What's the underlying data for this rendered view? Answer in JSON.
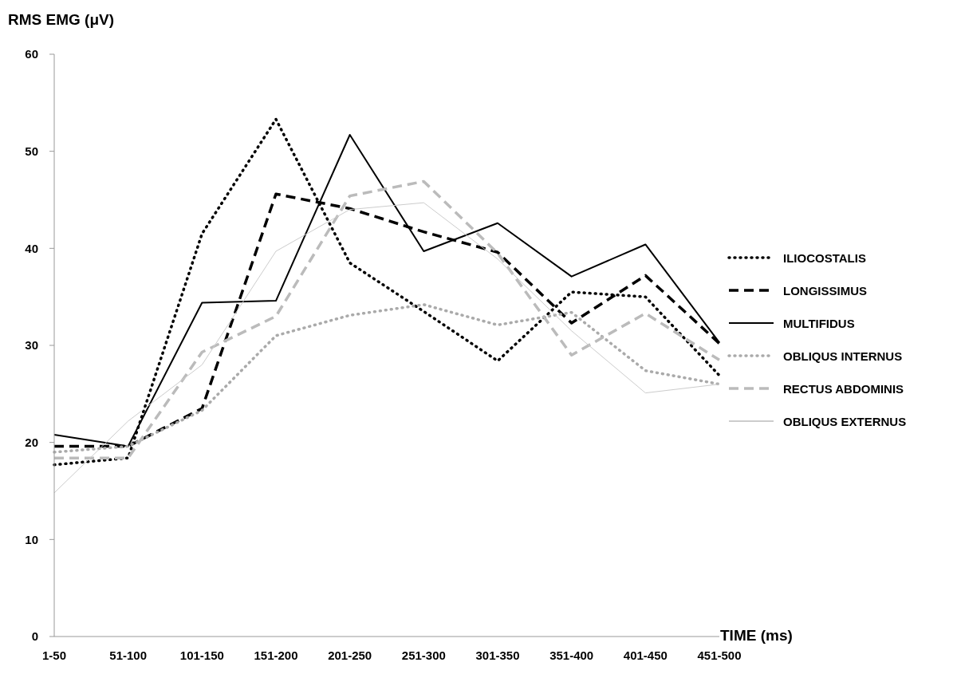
{
  "chart_data": {
    "type": "line",
    "ylabel": "RMS EMG (μV)",
    "xlabel": "TIME (ms)",
    "categories": [
      "1-50",
      "51-100",
      "101-150",
      "151-200",
      "201-250",
      "251-300",
      "301-350",
      "351-400",
      "401-450",
      "451-500"
    ],
    "ylim": [
      0,
      60
    ],
    "yticks": [
      0,
      10,
      20,
      30,
      40,
      50,
      60
    ],
    "grid": false,
    "legend": "right",
    "marker": "none",
    "series": [
      {
        "name": "ILIOCOSTALIS",
        "color": "#000000",
        "line_style": "dotted",
        "values": [
          17.7,
          18.4,
          41.5,
          53.3,
          38.5,
          33.5,
          28.4,
          35.5,
          35.0,
          26.9
        ]
      },
      {
        "name": "LONGISSIMUS",
        "color": "#000000",
        "line_style": "dashed",
        "values": [
          19.6,
          19.6,
          23.5,
          45.6,
          44.1,
          41.7,
          39.6,
          32.3,
          37.2,
          30.2
        ]
      },
      {
        "name": "MULTIFIDUS",
        "color": "#000000",
        "line_style": "solid",
        "values": [
          20.8,
          19.6,
          34.4,
          34.6,
          51.7,
          39.7,
          42.6,
          37.1,
          40.4,
          30.3
        ]
      },
      {
        "name": "OBLIQUS INTERNUS",
        "color": "#aaaaaa",
        "line_style": "dotted",
        "values": [
          19.0,
          19.6,
          23.3,
          31.0,
          33.1,
          34.2,
          32.1,
          33.4,
          27.4,
          26.0
        ]
      },
      {
        "name": "RECTUS ABDOMINIS",
        "color": "#bbbbbb",
        "line_style": "dashed",
        "values": [
          18.4,
          18.4,
          29.3,
          33.0,
          45.4,
          46.9,
          39.5,
          29.0,
          33.3,
          28.5
        ]
      },
      {
        "name": "OBLIQUS EXTERNUS",
        "color": "#cccccc",
        "line_style": "solid",
        "values": [
          14.8,
          22.2,
          28.0,
          39.7,
          44.0,
          44.7,
          38.9,
          31.5,
          25.1,
          26.0
        ]
      }
    ]
  }
}
